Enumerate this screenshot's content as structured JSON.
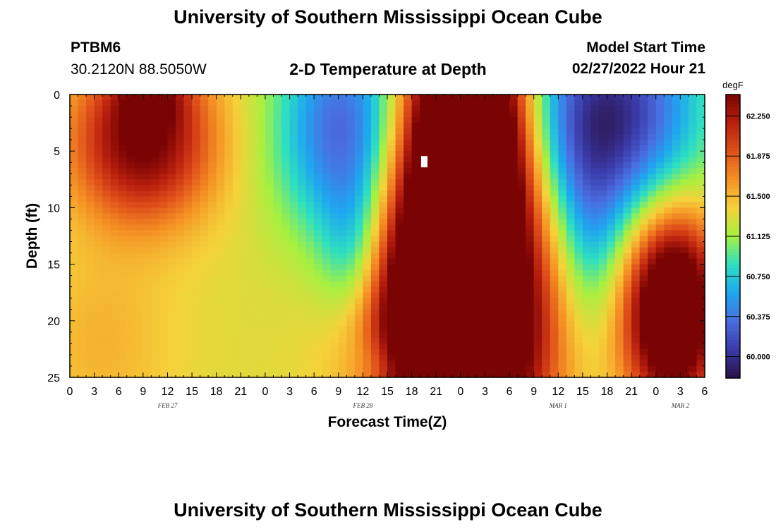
{
  "header": {
    "title": "University of Southern Mississippi Ocean Cube",
    "station": "PTBM6",
    "coordinates": "30.2120N  88.5050W",
    "plot_title": "2-D Temperature at Depth",
    "model_start_label": "Model Start Time",
    "model_start_value": "02/27/2022 Hour 21"
  },
  "footer": {
    "title": "University of Southern Mississippi Ocean Cube"
  },
  "chart_data": {
    "type": "heatmap",
    "xlabel": "Forecast Time(Z)",
    "ylabel": "Depth (ft)",
    "x_tick_labels": [
      "0",
      "3",
      "6",
      "9",
      "12",
      "15",
      "18",
      "21",
      "0",
      "3",
      "6",
      "9",
      "12",
      "15",
      "18",
      "21",
      "0",
      "3",
      "6",
      "9",
      "12",
      "15",
      "18",
      "21",
      "0",
      "3",
      "6"
    ],
    "x_range_hours": [
      0,
      78
    ],
    "day_labels": [
      {
        "label": "FEB 27",
        "hour": 12
      },
      {
        "label": "FEB 28",
        "hour": 36
      },
      {
        "label": "MAR 1",
        "hour": 60
      },
      {
        "label": "MAR 2",
        "hour": 75
      }
    ],
    "y_tick_labels": [
      "0",
      "5",
      "10",
      "15",
      "20",
      "25"
    ],
    "ylim": [
      25,
      0
    ],
    "colorbar": {
      "unit": "degF",
      "tick_labels": [
        "62.250",
        "61.875",
        "61.500",
        "61.125",
        "60.750",
        "60.375",
        "60.000"
      ],
      "range": [
        59.8,
        62.45
      ],
      "colors": [
        "#2a1248",
        "#3a3aa8",
        "#4a6ee0",
        "#1ea7f0",
        "#2ee0c0",
        "#a6f040",
        "#f5d23a",
        "#f59224",
        "#e0511a",
        "#b81f0e",
        "#7a0403"
      ]
    },
    "features": [
      {
        "h": 9,
        "d": 4,
        "amp": 1.2,
        "sh": 6,
        "sd": 5
      },
      {
        "h": 10,
        "d": 0,
        "amp": 0.5,
        "sh": 3,
        "sd": 2
      },
      {
        "h": 4,
        "d": 22,
        "amp": 0.2,
        "sh": 6,
        "sd": 6
      },
      {
        "h": 34,
        "d": 3,
        "amp": -1.1,
        "sh": 6,
        "sd": 7
      },
      {
        "h": 35,
        "d": 14,
        "amp": -0.5,
        "sh": 3,
        "sd": 5
      },
      {
        "h": 39,
        "d": 24,
        "amp": -0.3,
        "sh": 3,
        "sd": 2
      },
      {
        "h": 49,
        "d": 4,
        "amp": 2.4,
        "sh": 5,
        "sd": 9
      },
      {
        "h": 47,
        "d": 19,
        "amp": 1.9,
        "sh": 7,
        "sd": 11
      },
      {
        "h": 43,
        "d": 21,
        "amp": 0.6,
        "sh": 4,
        "sd": 6
      },
      {
        "h": 55,
        "d": 22,
        "amp": 0.4,
        "sh": 4,
        "sd": 6
      },
      {
        "h": 66,
        "d": 2,
        "amp": -1.4,
        "sh": 8,
        "sd": 7
      },
      {
        "h": 64,
        "d": 13,
        "amp": -0.4,
        "sh": 3,
        "sd": 6
      },
      {
        "h": 74,
        "d": 19,
        "amp": 1.9,
        "sh": 4,
        "sd": 6
      }
    ],
    "base_value": 61.32,
    "missing_cell": {
      "hour": 43.5,
      "depth": 6
    }
  }
}
